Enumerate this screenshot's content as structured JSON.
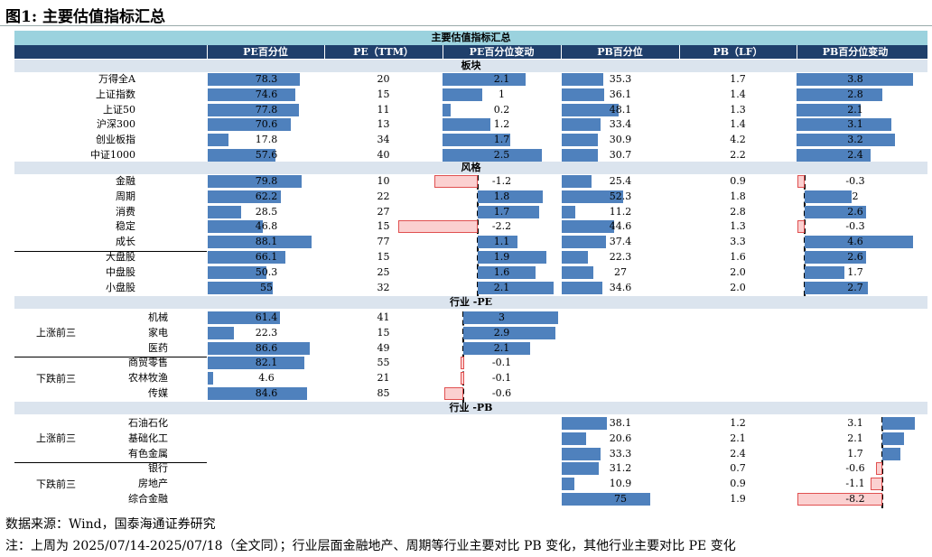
{
  "title": "图1:  主要估值指标汇总",
  "banner": "主要估值指标汇总",
  "columns": [
    "PE百分位",
    "PE（TTM）",
    "PE百分位变动",
    "PB百分位",
    "PB（LF）",
    "PB百分位变动"
  ],
  "sections": {
    "board": "板块",
    "style": "风格",
    "industry_pe": "行业 -PE",
    "industry_pb": "行业 -PB"
  },
  "board_rows": [
    {
      "name": "万得全A",
      "pe_pct": 78.3,
      "pe": "20",
      "pe_chg": 2.1,
      "pb_pct": 35.3,
      "pb": "1.7",
      "pb_chg": 3.8
    },
    {
      "name": "上证指数",
      "pe_pct": 74.6,
      "pe": "15",
      "pe_chg": 1.0,
      "pb_pct": 36.1,
      "pb": "1.4",
      "pb_chg": 2.8
    },
    {
      "name": "上证50",
      "pe_pct": 77.8,
      "pe": "11",
      "pe_chg": 0.2,
      "pb_pct": 48.1,
      "pb": "1.3",
      "pb_chg": 2.1
    },
    {
      "name": "沪深300",
      "pe_pct": 70.6,
      "pe": "13",
      "pe_chg": 1.2,
      "pb_pct": 33.4,
      "pb": "1.4",
      "pb_chg": 3.1
    },
    {
      "name": "创业板指",
      "pe_pct": 17.8,
      "pe": "34",
      "pe_chg": 1.7,
      "pb_pct": 30.9,
      "pb": "4.2",
      "pb_chg": 3.2
    },
    {
      "name": "中证1000",
      "pe_pct": 57.6,
      "pe": "40",
      "pe_chg": 2.5,
      "pb_pct": 30.7,
      "pb": "2.2",
      "pb_chg": 2.4
    }
  ],
  "style_rows": [
    {
      "name": "金融",
      "pe_pct": 79.8,
      "pe": "10",
      "pe_chg": -1.2,
      "pb_pct": 25.4,
      "pb": "0.9",
      "pb_chg": -0.3
    },
    {
      "name": "周期",
      "pe_pct": 62.2,
      "pe": "22",
      "pe_chg": 1.8,
      "pb_pct": 52.3,
      "pb": "1.8",
      "pb_chg": 2.0
    },
    {
      "name": "消费",
      "pe_pct": 28.5,
      "pe": "27",
      "pe_chg": 1.7,
      "pb_pct": 11.2,
      "pb": "2.8",
      "pb_chg": 2.6
    },
    {
      "name": "稳定",
      "pe_pct": 46.8,
      "pe": "15",
      "pe_chg": -2.2,
      "pb_pct": 44.6,
      "pb": "1.3",
      "pb_chg": -0.3
    },
    {
      "name": "成长",
      "pe_pct": 88.1,
      "pe": "77",
      "pe_chg": 1.1,
      "pb_pct": 37.4,
      "pb": "3.3",
      "pb_chg": 4.6
    },
    {
      "name": "大盘股",
      "pe_pct": 66.1,
      "pe": "15",
      "pe_chg": 1.9,
      "pb_pct": 22.3,
      "pb": "1.6",
      "pb_chg": 2.6
    },
    {
      "name": "中盘股",
      "pe_pct": 50.3,
      "pe": "25",
      "pe_chg": 1.6,
      "pb_pct": 27.0,
      "pb": "2.0",
      "pb_chg": 1.7
    },
    {
      "name": "小盘股",
      "pe_pct": 55,
      "pe": "32",
      "pe_chg": 2.1,
      "pb_pct": 34.6,
      "pb": "2.0",
      "pb_chg": 2.7
    }
  ],
  "pe_groups": {
    "up": "上涨前三",
    "down": "下跌前三"
  },
  "pe_rows": [
    {
      "name": "机械",
      "pe_pct": 61.4,
      "pe": "41",
      "pe_chg": 3.0
    },
    {
      "name": "家电",
      "pe_pct": 22.3,
      "pe": "15",
      "pe_chg": 2.9
    },
    {
      "name": "医药",
      "pe_pct": 86.6,
      "pe": "49",
      "pe_chg": 2.1
    },
    {
      "name": "商贸零售",
      "pe_pct": 82.1,
      "pe": "55",
      "pe_chg": -0.1
    },
    {
      "name": "农林牧渔",
      "pe_pct": 4.6,
      "pe": "21",
      "pe_chg": -0.1
    },
    {
      "name": "传媒",
      "pe_pct": 84.6,
      "pe": "85",
      "pe_chg": -0.6
    }
  ],
  "pb_groups": {
    "up": "上涨前三",
    "down": "下跌前三"
  },
  "pb_rows": [
    {
      "name": "石油石化",
      "pb_pct": 38.1,
      "pb": "1.2",
      "pb_chg": 3.1
    },
    {
      "name": "基础化工",
      "pb_pct": 20.6,
      "pb": "2.1",
      "pb_chg": 2.1
    },
    {
      "name": "有色金属",
      "pb_pct": 33.3,
      "pb": "2.4",
      "pb_chg": 1.7
    },
    {
      "name": "银行",
      "pb_pct": 31.2,
      "pb": "0.7",
      "pb_chg": -0.6
    },
    {
      "name": "房地产",
      "pb_pct": 10.9,
      "pb": "0.9",
      "pb_chg": -1.1
    },
    {
      "name": "综合金融",
      "pb_pct": 75.0,
      "pb": "1.9",
      "pb_chg": -8.2
    }
  ],
  "source": "数据来源：Wind，国泰海通证券研究",
  "note": "注：上周为 2025/07/14-2025/07/18（全文同）；行业层面金融地产、周期等行业主要对比 PB 变化，其他行业主要对比 PE 变化",
  "colors": {
    "positive_bar": "#4f81bd",
    "negative_bar": "#fbd0d0",
    "negative_border": "#e05050",
    "header": "#1f3f6b",
    "banner": "#9bd2de",
    "section": "#dbe4ee"
  }
}
